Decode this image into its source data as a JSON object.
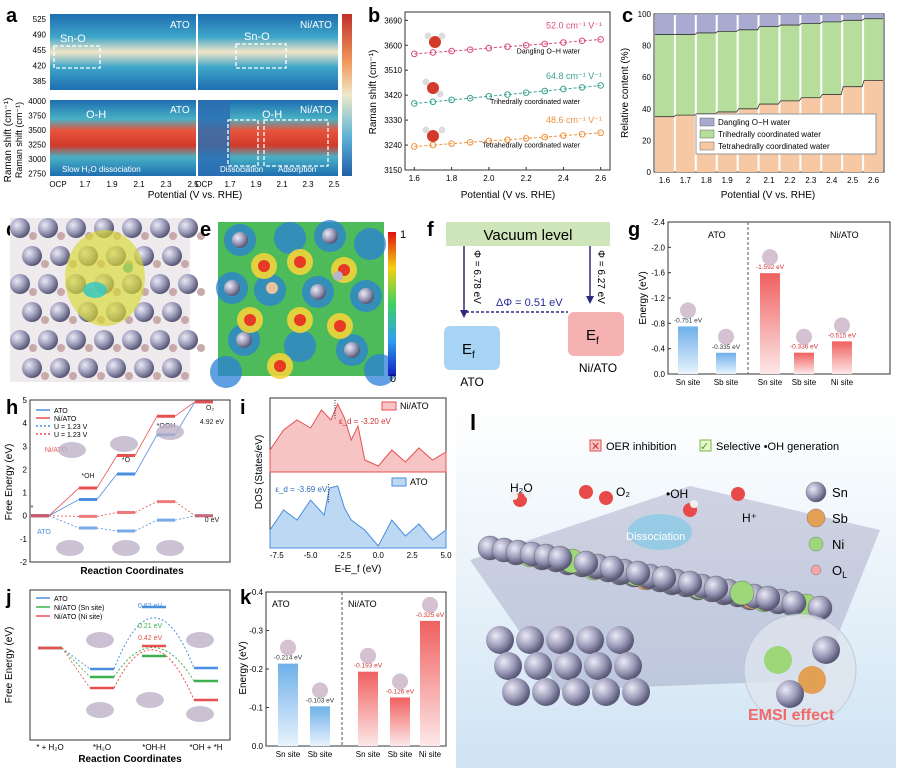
{
  "panel_letters": {
    "a": "a",
    "b": "b",
    "c": "c",
    "d": "d",
    "e": "e",
    "f": "f",
    "g": "g",
    "h": "h",
    "i": "i",
    "j": "j",
    "k": "k",
    "l": "l"
  },
  "colors": {
    "ato": "#4a8ee0",
    "ni": "#e85050",
    "green": "#3fb04f",
    "orange": "#f39a5a",
    "teal": "#3aa28f",
    "pink": "#d94a83",
    "heatblue": "#3b7fc4",
    "heatred": "#d23a2a"
  },
  "panel_a": {
    "top_left": {
      "label": "ATO",
      "peak": "Sn-O",
      "yticks": [
        "525",
        "490",
        "455",
        "420",
        "385"
      ]
    },
    "top_right": {
      "label": "Ni/ATO",
      "peak": "Sn-O"
    },
    "bottom_left": {
      "label": "ATO",
      "peak": "O-H",
      "note": "Slow H₂O dissociation",
      "yticks": [
        "4000",
        "3750",
        "3500",
        "3250",
        "3000",
        "2750"
      ],
      "xticks": [
        "OCP",
        "1.7",
        "1.9",
        "2.1",
        "2.3",
        "2.5"
      ]
    },
    "bottom_right": {
      "label": "Ni/ATO",
      "peak": "O-H",
      "region1": "Dissociation",
      "region2": "Adsorption",
      "xticks": [
        "OCP",
        "1.7",
        "1.9",
        "2.1",
        "2.3",
        "2.5"
      ]
    },
    "ylabel_top": "Raman shift (cm⁻¹)",
    "ylabel_bottom": "Raman shift (cm⁻¹)",
    "xlabel": "Potential (V vs. RHE)"
  },
  "panel_f": {
    "vacuum": "Vacuum level",
    "phi1": "Φ = 6.78 eV",
    "phi2": "Φ = 6.27 eV",
    "delta": "ΔΦ = 0.51 eV",
    "ef": "E",
    "ef_sub": "f",
    "left": "ATO",
    "right": "Ni/ATO"
  },
  "panel_e": {
    "cbar_max": "1",
    "cbar_min": "0"
  },
  "panel_l": {
    "legend1": "OER inhibition",
    "legend2": "Selective •OH generation",
    "h2o": "H₂O",
    "o2": "O₂",
    "oh": "•OH",
    "hplus": "H⁺",
    "dissociation": "Dissociation",
    "emsi": "EMSI effect",
    "atoms": [
      {
        "name": "Sn",
        "color": "#8e8fb6"
      },
      {
        "name": "Sb",
        "color": "#e2a055"
      },
      {
        "name": "Ni",
        "color": "#9ed67a"
      },
      {
        "name": "O",
        "sub": "L",
        "color": "#f2a7a7"
      }
    ]
  },
  "chart_data": [
    {
      "panel": "b",
      "type": "line",
      "title": "",
      "xlabel": "Potential (V vs. RHE)",
      "ylabel": "Raman shift (cm⁻¹)",
      "xlim": [
        1.55,
        2.65
      ],
      "ylim": [
        3150,
        3720
      ],
      "x_ticks": [
        "1.6",
        "1.8",
        "2.0",
        "2.2",
        "2.4",
        "2.6"
      ],
      "y_ticks": [
        "3690",
        "3600",
        "3510",
        "3420",
        "3330",
        "3240",
        "3150"
      ],
      "x": [
        1.6,
        1.7,
        1.8,
        1.9,
        2.0,
        2.1,
        2.2,
        2.3,
        2.4,
        2.5,
        2.6
      ],
      "series": [
        {
          "name": "Dangling O−H water",
          "slope": "52.0 cm⁻¹ V⁻¹",
          "color": "#d94a83",
          "values": [
            3569,
            3574,
            3579,
            3584,
            3590,
            3595,
            3600,
            3605,
            3610,
            3616,
            3621
          ]
        },
        {
          "name": "Trihedrally coordinated water",
          "slope": "64.8 cm⁻¹ V⁻¹",
          "color": "#3aa28f",
          "values": [
            3390,
            3396,
            3403,
            3409,
            3416,
            3422,
            3429,
            3435,
            3442,
            3448,
            3455
          ]
        },
        {
          "name": "Tetrahedrally coordinated water",
          "slope": "48.6 cm⁻¹ V⁻¹",
          "color": "#f0923c",
          "values": [
            3235,
            3240,
            3245,
            3250,
            3255,
            3259,
            3264,
            3269,
            3274,
            3279,
            3284
          ]
        }
      ]
    },
    {
      "panel": "c",
      "type": "bar",
      "xlabel": "Potential (V vs. RHE)",
      "ylabel": "Relative content (%)",
      "ylim": [
        0,
        100
      ],
      "y_ticks": [
        "0",
        "20",
        "40",
        "60",
        "80",
        "100"
      ],
      "categories": [
        "1.6",
        "1.7",
        "1.8",
        "1.9",
        "2",
        "2.1",
        "2.2",
        "2.3",
        "2.4",
        "2.5",
        "2.6"
      ],
      "series": [
        {
          "name": "Tetrahedrally coordinated water",
          "color": "#f7c8a4",
          "values": [
            35,
            36,
            37,
            38,
            40,
            43,
            45,
            47,
            49,
            54,
            58
          ]
        },
        {
          "name": "Trihedrally coordinated water",
          "color": "#b6dd9c",
          "values": [
            52,
            51,
            51,
            51,
            50,
            49,
            48,
            47,
            46,
            42,
            39
          ]
        },
        {
          "name": "Dangling O−H water",
          "color": "#a9aacf",
          "values": [
            13,
            13,
            12,
            11,
            10,
            8,
            7,
            6,
            5,
            4,
            3
          ]
        }
      ]
    },
    {
      "panel": "g",
      "type": "bar",
      "ylabel": "Energy (eV)",
      "ylim": [
        0,
        -2.4
      ],
      "y_ticks": [
        "-2.4",
        "-2.0",
        "-1.6",
        "-1.2",
        "-0.8",
        "-0.4",
        "0.0"
      ],
      "groups": [
        "ATO",
        "Ni/ATO"
      ],
      "categories": [
        "Sn site",
        "Sb site",
        "Sn site",
        "Sb site",
        "Ni site"
      ],
      "values": [
        -0.751,
        -0.335,
        -1.592,
        -0.336,
        -0.515
      ],
      "labels": [
        "-0.751 eV",
        "-0.335 eV",
        "-1.592 eV",
        "-0.336 eV",
        "-0.515 eV"
      ]
    },
    {
      "panel": "h",
      "type": "line",
      "xlabel": "Reaction Coordinates",
      "ylabel": "Free Energy (eV)",
      "ylim": [
        -2,
        5
      ],
      "y_ticks": [
        "5",
        "4",
        "3",
        "2",
        "1",
        "0",
        "-1",
        "-2"
      ],
      "legend": [
        "ATO",
        "Ni/ATO",
        "U = 1.23 V",
        "U = 1.23 V"
      ],
      "steps": [
        "*",
        "*OH",
        "*O",
        "*OOH",
        "O₂"
      ],
      "series": [
        {
          "name": "ATO",
          "values": [
            0,
            0.7,
            1.8,
            3.5,
            4.92
          ]
        },
        {
          "name": "Ni/ATO",
          "values": [
            0,
            1.2,
            2.6,
            4.3,
            4.92
          ]
        },
        {
          "name": "ATO U = 1.23 V",
          "values": [
            0,
            -0.53,
            -0.66,
            -0.19,
            0
          ]
        },
        {
          "name": "Ni/ATO U = 1.23 V",
          "values": [
            0,
            -0.03,
            0.14,
            0.61,
            0
          ]
        }
      ],
      "annotations": [
        "*OH",
        "*O",
        "*OOH",
        "O₂",
        "4.92 eV",
        "0 eV",
        "*",
        "Ni/ATO",
        "ATO"
      ]
    },
    {
      "panel": "i",
      "type": "area",
      "xlabel": "E-E_f (eV)",
      "ylabel": "DOS (States/eV)",
      "xlim": [
        -8,
        5
      ],
      "x_ticks": [
        "-7.5",
        "-5.0",
        "-2.5",
        "0.0",
        "2.5",
        "5.0"
      ],
      "series": [
        {
          "name": "Ni/ATO",
          "d_band_center": "ε_d = -3.20 eV",
          "color": "#e85050"
        },
        {
          "name": "ATO",
          "d_band_center": "ε_d = -3.69 eV",
          "color": "#4a8ee0"
        }
      ]
    },
    {
      "panel": "j",
      "type": "line",
      "xlabel": "Reaction Coordinates",
      "ylabel": "Free Energy (eV)",
      "steps": [
        "* + H₂O",
        "*H₂O",
        "*OH-H",
        "*OH + *H"
      ],
      "legend": [
        "ATO",
        "Ni/ATO (Sn site)",
        "Ni/ATO (Ni site)"
      ],
      "series": [
        {
          "name": "ATO",
          "values": [
            0,
            -0.21,
            0.41,
            -0.2
          ]
        },
        {
          "name": "Ni/ATO (Sn site)",
          "values": [
            0,
            -0.29,
            -0.08,
            -0.33
          ]
        },
        {
          "name": "Ni/ATO (Ni site)",
          "values": [
            0,
            -0.4,
            0.02,
            -0.52
          ]
        }
      ],
      "barriers": [
        "0.62 eV",
        "0.21 eV",
        "0.42 eV"
      ]
    },
    {
      "panel": "k",
      "type": "bar",
      "ylabel": "Energy (eV)",
      "ylim": [
        0,
        -0.4
      ],
      "y_ticks": [
        "-0.4",
        "-0.3",
        "-0.2",
        "-0.1",
        "0.0"
      ],
      "groups": [
        "ATO",
        "Ni/ATO"
      ],
      "categories": [
        "Sn site",
        "Sb site",
        "Sn site",
        "Sb site",
        "Ni site"
      ],
      "values": [
        -0.214,
        -0.103,
        -0.193,
        -0.126,
        -0.325
      ],
      "labels": [
        "-0.214 eV",
        "-0.103 eV",
        "-0.193 eV",
        "-0.126 eV",
        "-0.325 eV"
      ]
    }
  ]
}
